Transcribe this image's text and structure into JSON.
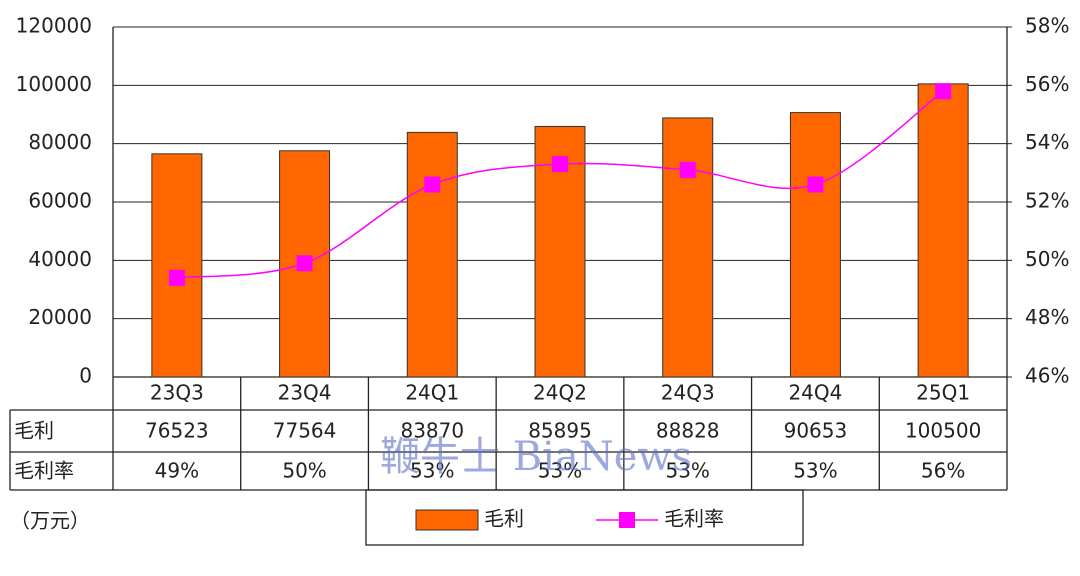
{
  "chart_data": {
    "type": "bar-line",
    "categories": [
      "23Q3",
      "23Q4",
      "24Q1",
      "24Q2",
      "24Q3",
      "24Q4",
      "25Q1"
    ],
    "series": [
      {
        "name": "毛利",
        "type": "bar",
        "color": "#ff6600",
        "values": [
          76523,
          77564,
          83870,
          85895,
          88828,
          90653,
          100500
        ]
      },
      {
        "name": "毛利率",
        "type": "line",
        "axis": "y2",
        "color": "#ff00ff",
        "values": [
          49.4,
          49.9,
          52.6,
          53.3,
          53.1,
          52.6,
          55.8
        ],
        "value_labels": [
          "49%",
          "50%",
          "53%",
          "53%",
          "53%",
          "53%",
          "56%"
        ]
      }
    ],
    "ylim": [
      0,
      120000
    ],
    "yticks": [
      0,
      20000,
      40000,
      60000,
      80000,
      100000,
      120000
    ],
    "y2lim": [
      46,
      58
    ],
    "y2ticks": [
      {
        "value": 46,
        "label": "46%"
      },
      {
        "value": 48,
        "label": "48%"
      },
      {
        "value": 50,
        "label": "50%"
      },
      {
        "value": 52,
        "label": "52%"
      },
      {
        "value": 54,
        "label": "54%"
      },
      {
        "value": 56,
        "label": "56%"
      },
      {
        "value": 58,
        "label": "58%"
      }
    ],
    "grid": true,
    "unit_note": "（万元）",
    "watermark": "鞭牛士 BiaNews"
  }
}
